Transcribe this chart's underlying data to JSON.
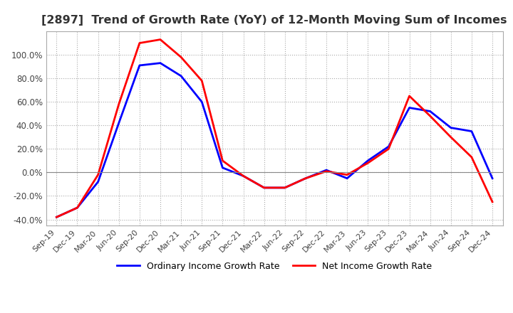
{
  "title": "[2897]  Trend of Growth Rate (YoY) of 12-Month Moving Sum of Incomes",
  "title_fontsize": 11.5,
  "ylim": [
    -0.45,
    1.2
  ],
  "yticks": [
    -0.4,
    -0.2,
    0.0,
    0.2,
    0.4,
    0.6,
    0.8,
    1.0
  ],
  "background_color": "#ffffff",
  "grid_color": "#aaaaaa",
  "legend_labels": [
    "Ordinary Income Growth Rate",
    "Net Income Growth Rate"
  ],
  "line_colors": [
    "#0000ff",
    "#ff0000"
  ],
  "x_labels": [
    "Sep-19",
    "Dec-19",
    "Mar-20",
    "Jun-20",
    "Sep-20",
    "Dec-20",
    "Mar-21",
    "Jun-21",
    "Sep-21",
    "Dec-21",
    "Mar-22",
    "Jun-22",
    "Sep-22",
    "Dec-22",
    "Mar-23",
    "Jun-23",
    "Sep-23",
    "Dec-23",
    "Mar-24",
    "Jun-24",
    "Sep-24",
    "Dec-24"
  ],
  "ordinary_income": [
    -0.38,
    -0.3,
    -0.08,
    0.42,
    0.91,
    0.93,
    0.82,
    0.6,
    0.04,
    -0.03,
    -0.13,
    -0.13,
    -0.05,
    0.02,
    -0.05,
    0.1,
    0.22,
    0.55,
    0.52,
    0.38,
    0.35,
    -0.05
  ],
  "net_income": [
    -0.38,
    -0.3,
    -0.02,
    0.58,
    1.1,
    1.13,
    0.98,
    0.78,
    0.1,
    -0.03,
    -0.13,
    -0.13,
    -0.05,
    0.01,
    -0.02,
    0.08,
    0.2,
    0.65,
    0.48,
    0.3,
    0.13,
    -0.25
  ]
}
